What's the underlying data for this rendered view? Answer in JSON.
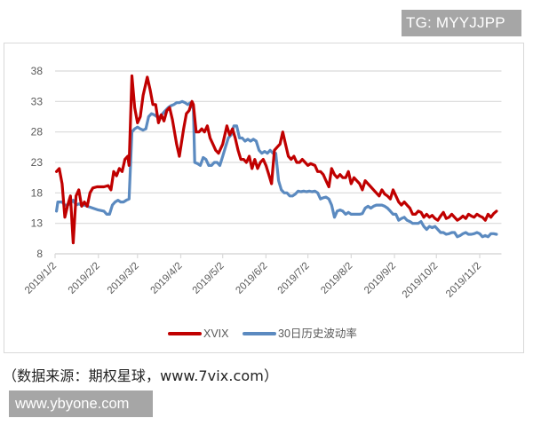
{
  "watermarks": {
    "top": "TG: MYYJJPP",
    "bottom": "www.ybyone.com"
  },
  "source_note": "（数据来源：期权星球，www.7vix.com）",
  "colors": {
    "xvix": "#c00000",
    "hv30": "#5b8ac0",
    "grid": "#d9d9d9",
    "axis_text": "#595959",
    "watermark_bg": "#a6a6a6"
  },
  "chart_data": {
    "type": "line",
    "title": "",
    "xlabel": "",
    "ylabel": "",
    "ylim": [
      8,
      38
    ],
    "yticks": [
      38,
      33,
      28,
      23,
      18,
      13,
      8
    ],
    "grid": true,
    "legend_position": "bottom",
    "x_tick_labels": [
      "2019/1/2",
      "2019/2/2",
      "2019/3/2",
      "2019/4/2",
      "2019/5/2",
      "2019/6/2",
      "2019/7/2",
      "2019/8/2",
      "2019/9/2",
      "2019/10/2",
      "2019/11/2"
    ],
    "x_tick_days": [
      0,
      31,
      59,
      90,
      120,
      151,
      181,
      212,
      243,
      273,
      304
    ],
    "x_range_days": [
      0,
      317
    ],
    "series": [
      {
        "name": "XVIX",
        "color": "#c00000",
        "points_day_value": [
          [
            1,
            21.5
          ],
          [
            3,
            22
          ],
          [
            5,
            19.5
          ],
          [
            7,
            14
          ],
          [
            9,
            16
          ],
          [
            11,
            17.5
          ],
          [
            13,
            9.8
          ],
          [
            15,
            17.5
          ],
          [
            17,
            18.5
          ],
          [
            19,
            15.8
          ],
          [
            21,
            16.5
          ],
          [
            23,
            15.8
          ],
          [
            25,
            18
          ],
          [
            27,
            18.8
          ],
          [
            30,
            19
          ],
          [
            35,
            19
          ],
          [
            38,
            19.2
          ],
          [
            40,
            18.5
          ],
          [
            42,
            21.5
          ],
          [
            44,
            20.8
          ],
          [
            46,
            22
          ],
          [
            48,
            21.5
          ],
          [
            50,
            23.5
          ],
          [
            52,
            24
          ],
          [
            53,
            22.5
          ],
          [
            55,
            37.2
          ],
          [
            57,
            32
          ],
          [
            59,
            29.5
          ],
          [
            61,
            30.5
          ],
          [
            63,
            34
          ],
          [
            66,
            37
          ],
          [
            68,
            35
          ],
          [
            70,
            32.5
          ],
          [
            72,
            32.5
          ],
          [
            74,
            29.5
          ],
          [
            76,
            30.8
          ],
          [
            78,
            29.8
          ],
          [
            80,
            31.5
          ],
          [
            82,
            32
          ],
          [
            84,
            30
          ],
          [
            87,
            26
          ],
          [
            89,
            24
          ],
          [
            92,
            28.5
          ],
          [
            94,
            31
          ],
          [
            96,
            31.5
          ],
          [
            98,
            33
          ],
          [
            99,
            32.5
          ],
          [
            101,
            28
          ],
          [
            103,
            28
          ],
          [
            105,
            28.5
          ],
          [
            107,
            28
          ],
          [
            109,
            29
          ],
          [
            111,
            27
          ],
          [
            113,
            26
          ],
          [
            115,
            25
          ],
          [
            117,
            24.5
          ],
          [
            120,
            26
          ],
          [
            123,
            29
          ],
          [
            125,
            27.5
          ],
          [
            127,
            28.5
          ],
          [
            129,
            27
          ],
          [
            131,
            25
          ],
          [
            133,
            23.5
          ],
          [
            135,
            23.5
          ],
          [
            137,
            23
          ],
          [
            139,
            24
          ],
          [
            141,
            22
          ],
          [
            143,
            23.5
          ],
          [
            145,
            22
          ],
          [
            147,
            23
          ],
          [
            149,
            23.5
          ],
          [
            151,
            22.5
          ],
          [
            153,
            21
          ],
          [
            155,
            19.5
          ],
          [
            157,
            25
          ],
          [
            159,
            25.5
          ],
          [
            161,
            26
          ],
          [
            163,
            28
          ],
          [
            165,
            26
          ],
          [
            167,
            24
          ],
          [
            169,
            23.5
          ],
          [
            171,
            24
          ],
          [
            173,
            23
          ],
          [
            175,
            23
          ],
          [
            177,
            23.5
          ],
          [
            179,
            23
          ],
          [
            181,
            22.5
          ],
          [
            183,
            22.8
          ],
          [
            186,
            22.5
          ],
          [
            188,
            21.5
          ],
          [
            190,
            21.5
          ],
          [
            192,
            21
          ],
          [
            194,
            20
          ],
          [
            196,
            19
          ],
          [
            198,
            22
          ],
          [
            200,
            21
          ],
          [
            202,
            20.5
          ],
          [
            204,
            21
          ],
          [
            206,
            20.5
          ],
          [
            208,
            20.5
          ],
          [
            210,
            21.5
          ],
          [
            212,
            19.5
          ],
          [
            214,
            20.5
          ],
          [
            216,
            20
          ],
          [
            218,
            19.5
          ],
          [
            220,
            18.5
          ],
          [
            222,
            20
          ],
          [
            224,
            19.5
          ],
          [
            226,
            19
          ],
          [
            228,
            18.5
          ],
          [
            230,
            18
          ],
          [
            232,
            17.5
          ],
          [
            234,
            18.5
          ],
          [
            236,
            17.8
          ],
          [
            238,
            17.5
          ],
          [
            240,
            17
          ],
          [
            242,
            18.5
          ],
          [
            244,
            17.5
          ],
          [
            246,
            16.5
          ],
          [
            248,
            16
          ],
          [
            250,
            16.5
          ],
          [
            252,
            16
          ],
          [
            254,
            15.5
          ],
          [
            256,
            14.5
          ],
          [
            258,
            14.5
          ],
          [
            260,
            15
          ],
          [
            262,
            14.8
          ],
          [
            264,
            14
          ],
          [
            266,
            14.5
          ],
          [
            268,
            14
          ],
          [
            270,
            14.3
          ],
          [
            272,
            13.8
          ],
          [
            274,
            13.5
          ],
          [
            276,
            14.2
          ],
          [
            278,
            14.8
          ],
          [
            280,
            13.8
          ],
          [
            282,
            14
          ],
          [
            284,
            14.5
          ],
          [
            286,
            14
          ],
          [
            288,
            13.5
          ],
          [
            290,
            13.8
          ],
          [
            292,
            14.2
          ],
          [
            294,
            13.8
          ],
          [
            296,
            14.5
          ],
          [
            298,
            14.2
          ],
          [
            300,
            14
          ],
          [
            302,
            14.5
          ],
          [
            304,
            14.2
          ],
          [
            306,
            14
          ],
          [
            308,
            13.5
          ],
          [
            310,
            14.5
          ],
          [
            312,
            14
          ],
          [
            314,
            14.6
          ],
          [
            316,
            15
          ]
        ]
      },
      {
        "name": "30日历史波动率",
        "color": "#5b8ac0",
        "points_day_value": [
          [
            1,
            15
          ],
          [
            2,
            16.5
          ],
          [
            5,
            16.5
          ],
          [
            7,
            16
          ],
          [
            9,
            16
          ],
          [
            11,
            16.3
          ],
          [
            13,
            16.8
          ],
          [
            15,
            16
          ],
          [
            17,
            16.2
          ],
          [
            19,
            16
          ],
          [
            21,
            16
          ],
          [
            23,
            15.8
          ],
          [
            27,
            15.5
          ],
          [
            31,
            15.2
          ],
          [
            35,
            15
          ],
          [
            37,
            14.5
          ],
          [
            39,
            14.5
          ],
          [
            41,
            16
          ],
          [
            43,
            16.5
          ],
          [
            45,
            16.8
          ],
          [
            47,
            16.5
          ],
          [
            49,
            16.5
          ],
          [
            51,
            16.8
          ],
          [
            53,
            17
          ],
          [
            55,
            28
          ],
          [
            57,
            28.5
          ],
          [
            59,
            28.8
          ],
          [
            61,
            28.5
          ],
          [
            63,
            28.3
          ],
          [
            65,
            28.5
          ],
          [
            67,
            30.5
          ],
          [
            69,
            31
          ],
          [
            71,
            30.8
          ],
          [
            73,
            30.5
          ],
          [
            75,
            30.5
          ],
          [
            77,
            31
          ],
          [
            79,
            31.5
          ],
          [
            81,
            32
          ],
          [
            83,
            32.3
          ],
          [
            85,
            32.5
          ],
          [
            87,
            32.8
          ],
          [
            89,
            32.8
          ],
          [
            91,
            33
          ],
          [
            93,
            32.8
          ],
          [
            95,
            32.5
          ],
          [
            97,
            32.8
          ],
          [
            99,
            31.8
          ],
          [
            100,
            23
          ],
          [
            102,
            22.8
          ],
          [
            104,
            22.5
          ],
          [
            106,
            23.8
          ],
          [
            108,
            23.5
          ],
          [
            110,
            22.5
          ],
          [
            112,
            22.5
          ],
          [
            114,
            23
          ],
          [
            116,
            23
          ],
          [
            118,
            22.5
          ],
          [
            120,
            24
          ],
          [
            122,
            25.5
          ],
          [
            124,
            27
          ],
          [
            126,
            27.5
          ],
          [
            128,
            29
          ],
          [
            130,
            29
          ],
          [
            132,
            27
          ],
          [
            134,
            27
          ],
          [
            136,
            26.5
          ],
          [
            138,
            26.8
          ],
          [
            140,
            26.5
          ],
          [
            142,
            26.8
          ],
          [
            144,
            26.5
          ],
          [
            146,
            25
          ],
          [
            148,
            24.5
          ],
          [
            150,
            24.8
          ],
          [
            152,
            24.5
          ],
          [
            154,
            25
          ],
          [
            156,
            24.5
          ],
          [
            158,
            24.5
          ],
          [
            160,
            20
          ],
          [
            162,
            18.5
          ],
          [
            164,
            18
          ],
          [
            166,
            18
          ],
          [
            168,
            17.5
          ],
          [
            170,
            17.5
          ],
          [
            172,
            17.8
          ],
          [
            174,
            18.3
          ],
          [
            176,
            18.2
          ],
          [
            178,
            18.3
          ],
          [
            180,
            18.2
          ],
          [
            182,
            18.3
          ],
          [
            184,
            18.2
          ],
          [
            186,
            18.3
          ],
          [
            188,
            18
          ],
          [
            190,
            17
          ],
          [
            192,
            17.2
          ],
          [
            194,
            17.3
          ],
          [
            196,
            17
          ],
          [
            198,
            16
          ],
          [
            200,
            14
          ],
          [
            202,
            15
          ],
          [
            204,
            15.2
          ],
          [
            206,
            15
          ],
          [
            208,
            14.5
          ],
          [
            210,
            14.8
          ],
          [
            212,
            14.5
          ],
          [
            214,
            14.5
          ],
          [
            216,
            14.5
          ],
          [
            218,
            14.5
          ],
          [
            220,
            14.6
          ],
          [
            222,
            15.5
          ],
          [
            224,
            15.8
          ],
          [
            226,
            15.5
          ],
          [
            228,
            15.8
          ],
          [
            230,
            16
          ],
          [
            232,
            16
          ],
          [
            234,
            16
          ],
          [
            236,
            15.8
          ],
          [
            238,
            15.5
          ],
          [
            240,
            15
          ],
          [
            242,
            14.5
          ],
          [
            244,
            14.5
          ],
          [
            246,
            13.5
          ],
          [
            248,
            13.8
          ],
          [
            250,
            14
          ],
          [
            252,
            13.5
          ],
          [
            254,
            13.3
          ],
          [
            256,
            13
          ],
          [
            258,
            13
          ],
          [
            260,
            13
          ],
          [
            262,
            13.3
          ],
          [
            264,
            12.5
          ],
          [
            266,
            12
          ],
          [
            268,
            12.5
          ],
          [
            270,
            12.3
          ],
          [
            272,
            12.5
          ],
          [
            274,
            12
          ],
          [
            276,
            11.5
          ],
          [
            278,
            11.5
          ],
          [
            280,
            11.2
          ],
          [
            282,
            11.3
          ],
          [
            284,
            11.5
          ],
          [
            286,
            11.5
          ],
          [
            288,
            10.8
          ],
          [
            290,
            11
          ],
          [
            292,
            11.3
          ],
          [
            294,
            11.5
          ],
          [
            296,
            11.2
          ],
          [
            298,
            11.2
          ],
          [
            300,
            11.3
          ],
          [
            302,
            11.5
          ],
          [
            304,
            11.3
          ],
          [
            306,
            10.8
          ],
          [
            308,
            11
          ],
          [
            310,
            10.8
          ],
          [
            312,
            11.3
          ],
          [
            314,
            11.3
          ],
          [
            316,
            11.2
          ]
        ]
      }
    ]
  },
  "legend": {
    "items": [
      {
        "label": "XVIX",
        "color": "#c00000"
      },
      {
        "label": "30日历史波动率",
        "color": "#5b8ac0"
      }
    ]
  }
}
